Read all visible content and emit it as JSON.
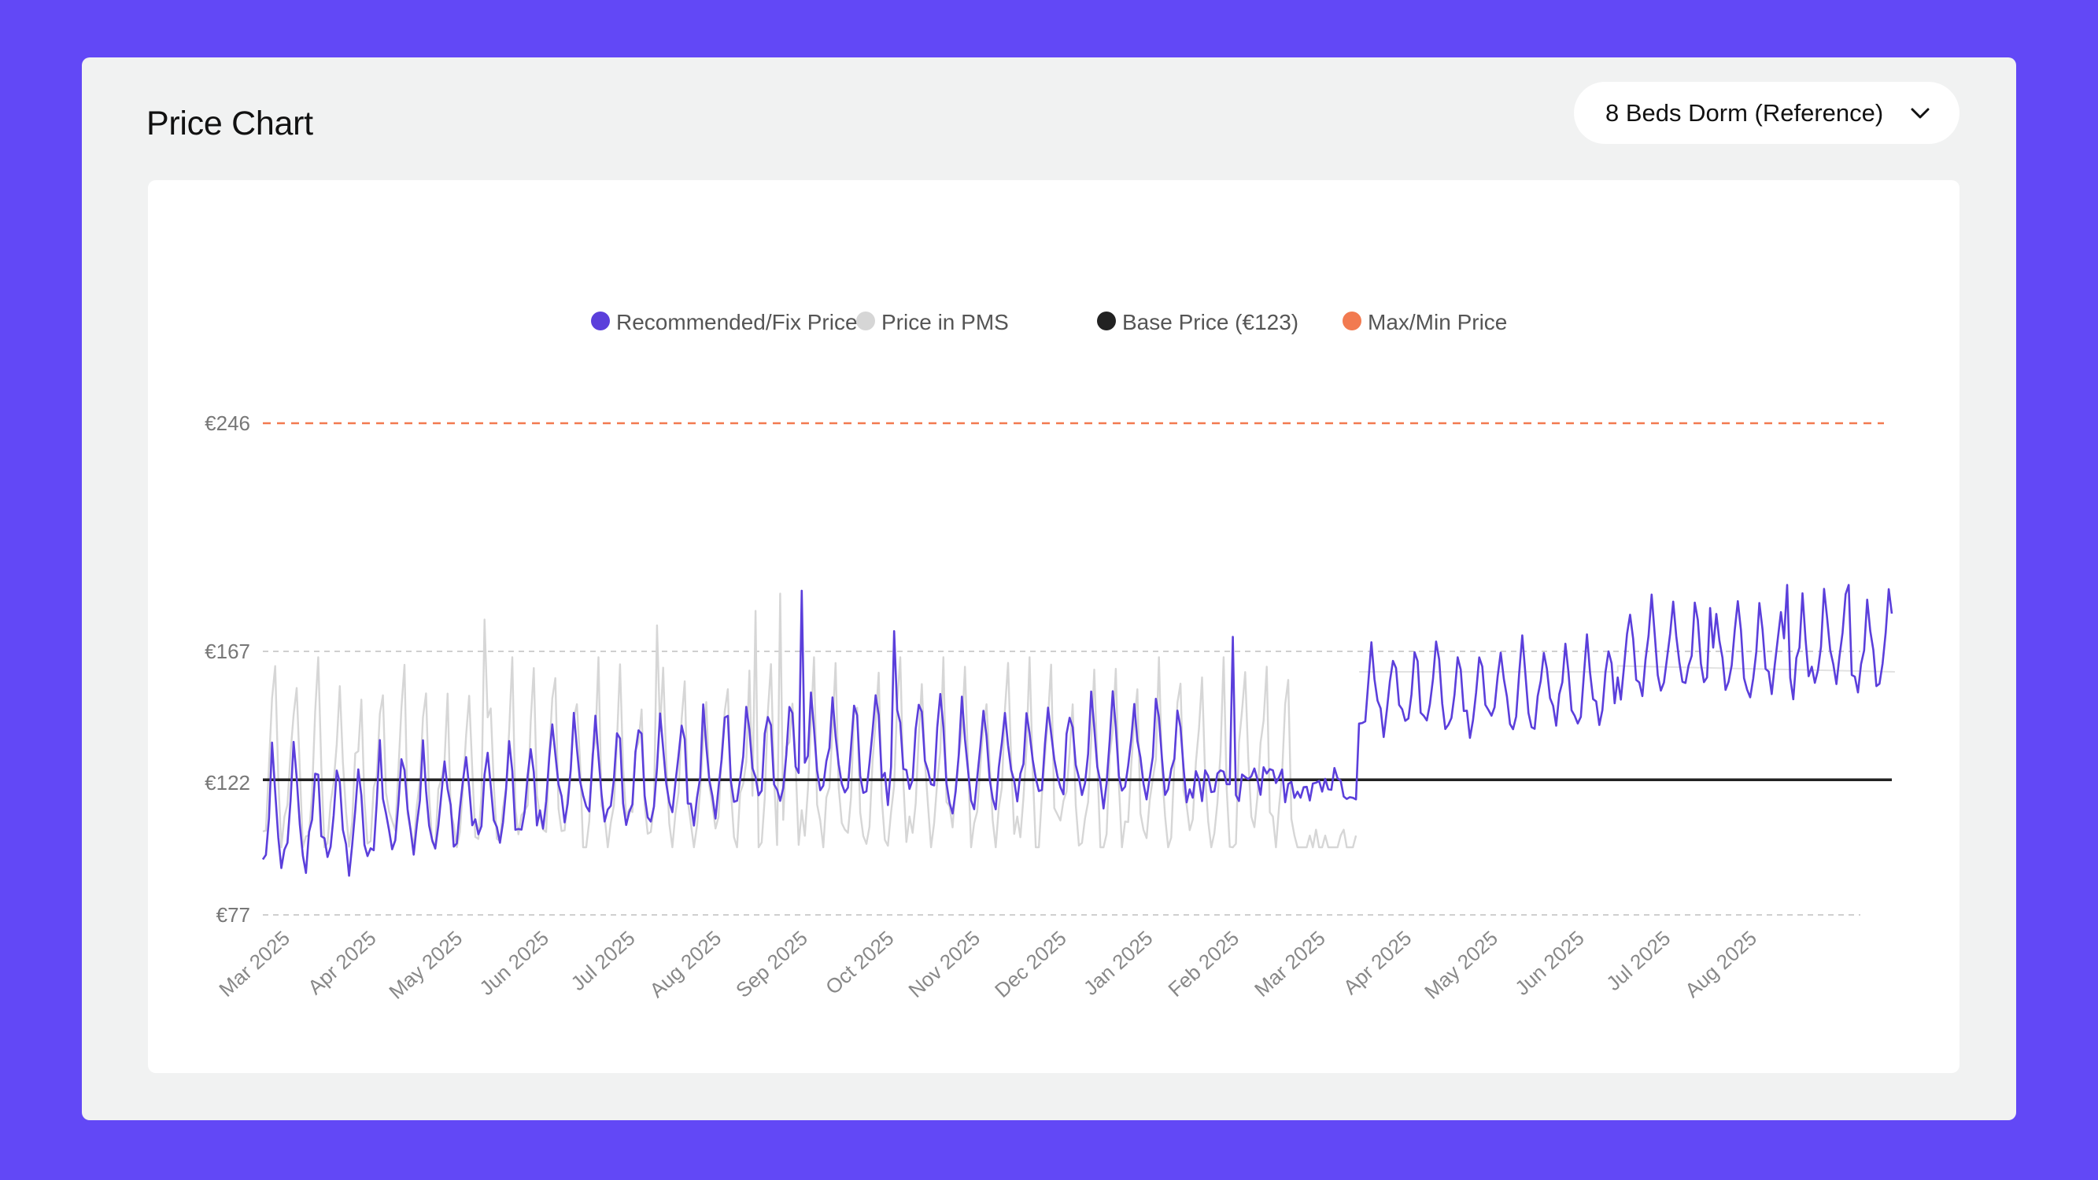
{
  "panel": {
    "title": "Price Chart",
    "room_select": {
      "value": "8 Beds Dorm (Reference)",
      "icon": "chevron-down-icon"
    }
  },
  "chart_data": {
    "type": "line",
    "start_date": "2025-02-26",
    "days": 530,
    "pms_days": 356,
    "x_ticks": [
      "Mar 2025",
      "Apr 2025",
      "May 2025",
      "Jun 2025",
      "Jul 2025",
      "Aug 2025",
      "Sep 2025",
      "Oct 2025",
      "Nov 2025",
      "Dec 2025",
      "Jan 2025",
      "Feb 2025",
      "Mar 2025",
      "Apr 2025",
      "May 2025",
      "Jun 2025",
      "Jul 2025",
      "Aug 2025"
    ],
    "y_ticks": [
      {
        "label": "€246",
        "value": 246
      },
      {
        "label": "€167",
        "value": 167
      },
      {
        "label": "€122",
        "value": 122
      },
      {
        "label": "€77",
        "value": 77
      }
    ],
    "base_price": 123,
    "max_price": 246,
    "min_price": 77,
    "legend": [
      {
        "name": "Recommended/Fix Price",
        "color": "#5B3FDB"
      },
      {
        "name": "Price in PMS",
        "color": "#D6D6D6"
      },
      {
        "name": "Base Price (€123)",
        "color": "#222222"
      },
      {
        "name": "Max/Min Price",
        "color": "#F27A50"
      }
    ],
    "series": [
      {
        "name": "Recommended/Fix Price",
        "color": "#5B3FDB",
        "segments": [
          {
            "from_day": 0,
            "to_day": 40,
            "low": 86,
            "high": 133
          },
          {
            "from_day": 40,
            "to_day": 90,
            "low": 93,
            "high": 136
          },
          {
            "from_day": 90,
            "to_day": 150,
            "low": 101,
            "high": 145
          },
          {
            "from_day": 150,
            "to_day": 220,
            "low": 110,
            "high": 152
          },
          {
            "from_day": 220,
            "to_day": 300,
            "low": 108,
            "high": 150
          },
          {
            "from_day": 300,
            "to_day": 356,
            "low": 110,
            "high": 131
          },
          {
            "from_day": 356,
            "to_day": 440,
            "low": 135,
            "high": 170
          },
          {
            "from_day": 440,
            "to_day": 530,
            "low": 147,
            "high": 185
          }
        ],
        "peaks": [
          {
            "day": 175,
            "value": 188
          },
          {
            "day": 205,
            "value": 174
          },
          {
            "day": 315,
            "value": 172
          },
          {
            "day": 470,
            "value": 182
          },
          {
            "day": 495,
            "value": 190
          },
          {
            "day": 515,
            "value": 190
          }
        ]
      },
      {
        "name": "Price in PMS",
        "color": "#D6D6D6",
        "low": 100,
        "high": 165,
        "peaks": [
          {
            "day": 72,
            "value": 178
          },
          {
            "day": 128,
            "value": 176
          },
          {
            "day": 160,
            "value": 181
          },
          {
            "day": 168,
            "value": 187
          }
        ],
        "flat_tail": {
          "from_day": 335,
          "value": 100
        }
      }
    ]
  }
}
